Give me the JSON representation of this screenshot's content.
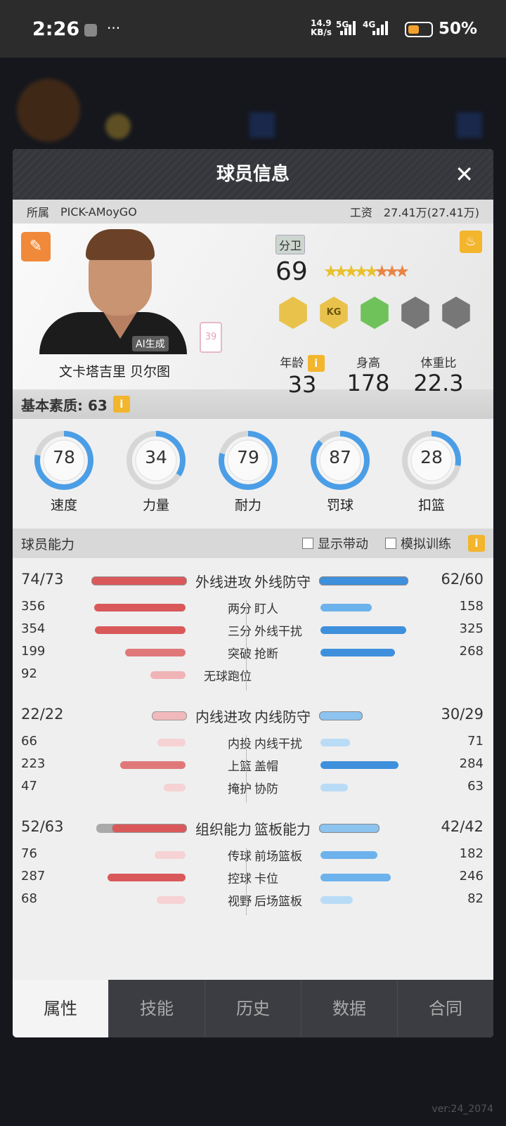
{
  "status_bar": {
    "time": "2:26",
    "net_speed": "14.9",
    "net_unit": "KB/s",
    "sig1": "5G",
    "sig2": "4G",
    "battery": "50%",
    "battery_level": 50,
    "dots": "···"
  },
  "dialog": {
    "title": "球员信息",
    "close": "✕"
  },
  "info": {
    "team_label": "所属",
    "team": "PICK-AMoyGO",
    "salary_label": "工资",
    "salary": "27.41万(27.41万)"
  },
  "player": {
    "name": "文卡塔吉里 贝尔图",
    "ai_tag": "AI生成",
    "jersey": "39",
    "position": "分卫",
    "overall": "69",
    "stars": {
      "gold": 5,
      "orange": 3
    },
    "badges": [
      {
        "icon": "silhouette-badge",
        "color": "#e8c24a"
      },
      {
        "icon": "kg-badge",
        "text": "KG",
        "color": "#e8c24a"
      },
      {
        "icon": "muscle-badge",
        "color": "#6fc25a"
      },
      {
        "icon": "empty-badge",
        "color": "#777"
      },
      {
        "icon": "empty-badge",
        "color": "#777"
      }
    ],
    "age_label": "年龄",
    "age": "33",
    "height_label": "身高",
    "height": "178",
    "bmi_label": "体重比",
    "bmi": "22.3"
  },
  "basic": {
    "label": "基本素质: 63",
    "info": "i",
    "stats": [
      {
        "label": "速度",
        "value": 78
      },
      {
        "label": "力量",
        "value": 34
      },
      {
        "label": "耐力",
        "value": 79
      },
      {
        "label": "罚球",
        "value": 87
      },
      {
        "label": "扣篮",
        "value": 28
      }
    ]
  },
  "ability": {
    "label": "球员能力",
    "show_bonus": "显示带动",
    "sim_training": "模拟训练",
    "info": "i",
    "groups": [
      {
        "left": {
          "label": "外线进攻",
          "value": "74/73",
          "cur": 74,
          "base": 73,
          "items": [
            {
              "label": "两分",
              "value": 356
            },
            {
              "label": "三分",
              "value": 354
            },
            {
              "label": "突破",
              "value": 199
            },
            {
              "label": "无球跑位",
              "value": 92
            }
          ]
        },
        "right": {
          "label": "外线防守",
          "value": "62/60",
          "cur": 62,
          "base": 60,
          "items": [
            {
              "label": "盯人",
              "value": 158
            },
            {
              "label": "外线干扰",
              "value": 325
            },
            {
              "label": "抢断",
              "value": 268
            }
          ]
        }
      },
      {
        "left": {
          "label": "内线进攻",
          "value": "22/22",
          "cur": 22,
          "base": 22,
          "items": [
            {
              "label": "内投",
              "value": 66
            },
            {
              "label": "上篮",
              "value": 223
            },
            {
              "label": "掩护",
              "value": 47
            }
          ]
        },
        "right": {
          "label": "内线防守",
          "value": "30/29",
          "cur": 30,
          "base": 29,
          "items": [
            {
              "label": "内线干扰",
              "value": 71
            },
            {
              "label": "盖帽",
              "value": 284
            },
            {
              "label": "协防",
              "value": 63
            }
          ]
        }
      },
      {
        "left": {
          "label": "组织能力",
          "value": "52/63",
          "cur": 52,
          "base": 63,
          "items": [
            {
              "label": "传球",
              "value": 76
            },
            {
              "label": "控球",
              "value": 287
            },
            {
              "label": "视野",
              "value": 68
            }
          ]
        },
        "right": {
          "label": "篮板能力",
          "value": "42/42",
          "cur": 42,
          "base": 42,
          "items": [
            {
              "label": "前场篮板",
              "value": 182
            },
            {
              "label": "卡位",
              "value": 246
            },
            {
              "label": "后场篮板",
              "value": 82
            }
          ]
        }
      }
    ]
  },
  "tabs": [
    {
      "label": "属性",
      "active": true
    },
    {
      "label": "技能"
    },
    {
      "label": "历史"
    },
    {
      "label": "数据"
    },
    {
      "label": "合同"
    }
  ],
  "version": "ver:24_2074"
}
